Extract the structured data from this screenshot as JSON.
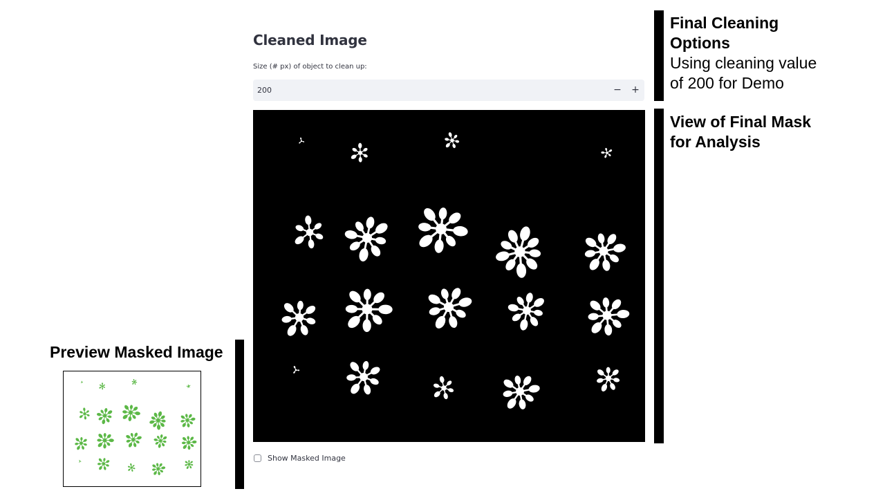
{
  "ui": {
    "section_title": "Cleaned Image",
    "input_label": "Size (# px) of object to clean up:",
    "input_value": "200",
    "minus_label": "−",
    "plus_label": "+",
    "checkbox_label": "Show Masked Image",
    "checkbox_checked": false
  },
  "annotations": {
    "cleaning_title_line1": "Final Cleaning",
    "cleaning_title_line2": "Options",
    "cleaning_note_line1": "Using cleaning value",
    "cleaning_note_line2": "of 200 for Demo",
    "mask_title_line1": "View of Final Mask",
    "mask_title_line2": "for Analysis",
    "preview_title": "Preview Masked Image"
  },
  "colors": {
    "mask_background": "#000000",
    "mask_foreground": "#ffffff",
    "plant_green": "#5cb847",
    "input_background": "#f0f2f6",
    "ui_text": "#31333f",
    "annotation_bar": "#000000"
  }
}
